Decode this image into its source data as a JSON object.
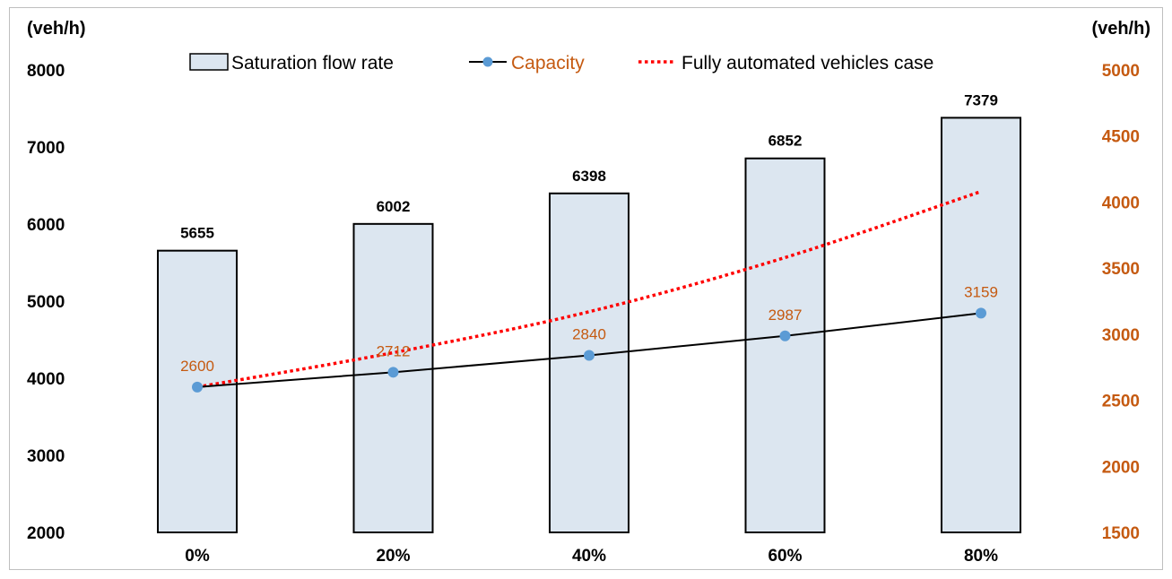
{
  "chart_data": {
    "type": "bar",
    "categories": [
      "0%",
      "20%",
      "40%",
      "60%",
      "80%"
    ],
    "y_left": {
      "unit": "(veh/h)",
      "range": [
        2000,
        8000
      ],
      "ticks": [
        2000,
        3000,
        4000,
        5000,
        6000,
        7000,
        8000
      ]
    },
    "y_right": {
      "unit": "(veh/h)",
      "range": [
        1500,
        5000
      ],
      "ticks": [
        1500,
        2000,
        2500,
        3000,
        3500,
        4000,
        4500,
        5000
      ]
    },
    "grid": false,
    "legend_position": "top",
    "series": [
      {
        "name": "Saturation flow rate",
        "type": "bar",
        "axis": "left",
        "values": [
          5655,
          6002,
          6398,
          6852,
          7379
        ]
      },
      {
        "name": "Capacity",
        "type": "line",
        "axis": "right",
        "values": [
          2600,
          2712,
          2840,
          2987,
          3159
        ]
      },
      {
        "name": "Fully automated vehicles case",
        "type": "dotted-line",
        "axis": "right",
        "values": [
          2600,
          2860,
          3170,
          3580,
          4080
        ]
      }
    ]
  },
  "colors": {
    "bar_fill": "#dce6f0",
    "bar_stroke": "#000000",
    "capacity_line": "#000000",
    "capacity_marker": "#5b9bd5",
    "capacity_label": "#c55a11",
    "right_axis_text": "#c55a11",
    "fav_line": "#ff0000"
  }
}
